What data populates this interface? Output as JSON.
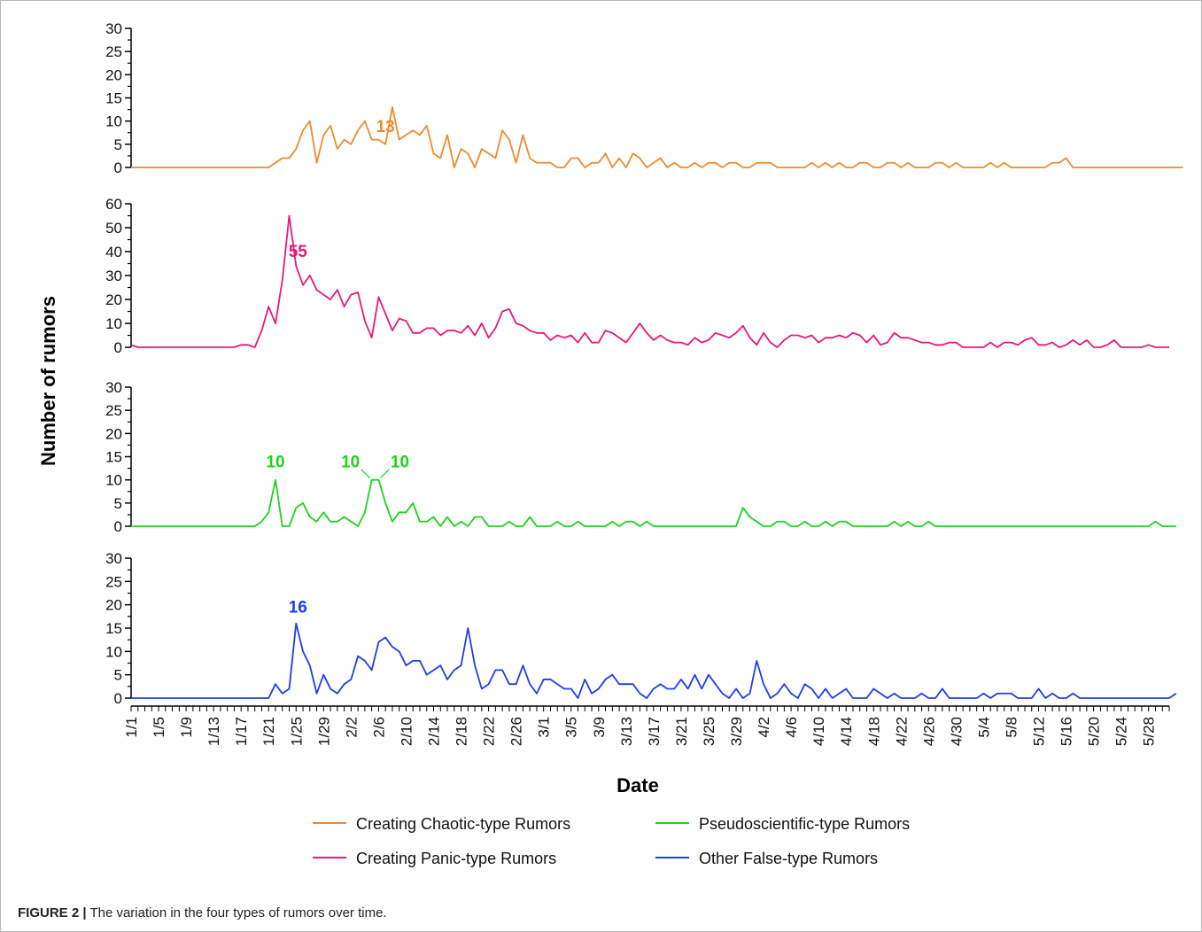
{
  "chart_data": {
    "type": "line",
    "xlabel": "Date",
    "ylabel": "Number of rumors",
    "x_tick_labels": [
      "1/1",
      "1/5",
      "1/9",
      "1/13",
      "1/17",
      "1/21",
      "1/25",
      "1/29",
      "2/2",
      "2/6",
      "2/10",
      "2/14",
      "2/18",
      "2/22",
      "2/26",
      "3/1",
      "3/5",
      "3/9",
      "3/13",
      "3/17",
      "3/21",
      "3/25",
      "3/29",
      "4/2",
      "4/6",
      "4/10",
      "4/14",
      "4/18",
      "4/22",
      "4/26",
      "4/30",
      "5/4",
      "5/8",
      "5/12",
      "5/16",
      "5/20",
      "5/24",
      "5/28"
    ],
    "x_tick_index": [
      0,
      4,
      8,
      12,
      16,
      20,
      24,
      28,
      32,
      36,
      40,
      44,
      48,
      52,
      56,
      60,
      64,
      68,
      72,
      76,
      80,
      84,
      88,
      92,
      96,
      100,
      104,
      108,
      112,
      116,
      120,
      124,
      128,
      132,
      136,
      140,
      144,
      148
    ],
    "num_days": 152,
    "panels": [
      {
        "name": "Creating Chaotic-type Rumors",
        "color": "#f08a2c",
        "ylim": [
          0,
          30
        ],
        "yticks": [
          0,
          5,
          10,
          15,
          20,
          25,
          30
        ],
        "annotations": [
          {
            "text": "13",
            "index": 37
          }
        ],
        "values": [
          0,
          0,
          0,
          0,
          0,
          0,
          0,
          0,
          0,
          0,
          0,
          0,
          0,
          0,
          0,
          0,
          0,
          0,
          0,
          0,
          0,
          1,
          2,
          2,
          4,
          8,
          10,
          1,
          7,
          9,
          4,
          6,
          5,
          8,
          10,
          6,
          6,
          5,
          13,
          6,
          7,
          8,
          7,
          9,
          3,
          2,
          7,
          0,
          4,
          3,
          0,
          4,
          3,
          2,
          8,
          6,
          1,
          7,
          2,
          1,
          1,
          1,
          0,
          0,
          2,
          2,
          0,
          1,
          1,
          3,
          0,
          2,
          0,
          3,
          2,
          0,
          1,
          2,
          0,
          1,
          0,
          0,
          1,
          0,
          1,
          1,
          0,
          1,
          1,
          0,
          0,
          1,
          1,
          1,
          0,
          0,
          0,
          0,
          0,
          1,
          0,
          1,
          0,
          1,
          0,
          0,
          1,
          1,
          0,
          0,
          1,
          1,
          0,
          1,
          0,
          0,
          0,
          1,
          1,
          0,
          1,
          0,
          0,
          0,
          0,
          1,
          0,
          1,
          0,
          0,
          0,
          0,
          0,
          0,
          1,
          1,
          2,
          0,
          0,
          0,
          0,
          0,
          0,
          0,
          0,
          0,
          0,
          0,
          0,
          0,
          0,
          0,
          0,
          0
        ]
      },
      {
        "name": "Creating Panic-type Rumors",
        "color": "#e6197d",
        "ylim": [
          0,
          60
        ],
        "yticks": [
          0,
          10,
          20,
          30,
          40,
          50,
          60
        ],
        "annotations": [
          {
            "text": "55",
            "index": 24
          }
        ],
        "values": [
          1,
          0,
          0,
          0,
          0,
          0,
          0,
          0,
          0,
          0,
          0,
          0,
          0,
          0,
          0,
          0,
          1,
          1,
          0,
          7,
          17,
          10,
          28,
          55,
          34,
          26,
          30,
          24,
          22,
          20,
          24,
          17,
          22,
          23,
          11,
          4,
          21,
          14,
          7,
          12,
          11,
          6,
          6,
          8,
          8,
          5,
          7,
          7,
          6,
          9,
          5,
          10,
          4,
          8,
          15,
          16,
          10,
          9,
          7,
          6,
          6,
          3,
          5,
          4,
          5,
          2,
          6,
          2,
          2,
          7,
          6,
          4,
          2,
          6,
          10,
          6,
          3,
          5,
          3,
          2,
          2,
          1,
          4,
          2,
          3,
          6,
          5,
          4,
          6,
          9,
          4,
          1,
          6,
          2,
          0,
          3,
          5,
          5,
          4,
          5,
          2,
          4,
          4,
          5,
          4,
          6,
          5,
          2,
          5,
          1,
          2,
          6,
          4,
          4,
          3,
          2,
          2,
          1,
          1,
          2,
          2,
          0,
          0,
          0,
          0,
          2,
          0,
          2,
          2,
          1,
          3,
          4,
          1,
          1,
          2,
          0,
          1,
          3,
          1,
          3,
          0,
          0,
          1,
          3,
          0,
          0,
          0,
          0,
          1,
          0,
          0,
          0
        ]
      },
      {
        "name": "Pseudoscientific-type Rumors",
        "color": "#1cd41c",
        "ylim": [
          0,
          30
        ],
        "yticks": [
          0,
          5,
          10,
          15,
          20,
          25,
          30
        ],
        "annotations": [
          {
            "text": "10",
            "index": 21
          },
          {
            "text": "10",
            "index": 35
          },
          {
            "text": "10",
            "index": 36
          }
        ],
        "values": [
          0,
          0,
          0,
          0,
          0,
          0,
          0,
          0,
          0,
          0,
          0,
          0,
          0,
          0,
          0,
          0,
          0,
          0,
          0,
          1,
          3,
          10,
          0,
          0,
          4,
          5,
          2,
          1,
          3,
          1,
          1,
          2,
          1,
          0,
          3,
          10,
          10,
          5,
          1,
          3,
          3,
          5,
          1,
          1,
          2,
          0,
          2,
          0,
          1,
          0,
          2,
          2,
          0,
          0,
          0,
          1,
          0,
          0,
          2,
          0,
          0,
          0,
          1,
          0,
          0,
          1,
          0,
          0,
          0,
          0,
          1,
          0,
          1,
          1,
          0,
          1,
          0,
          0,
          0,
          0,
          0,
          0,
          0,
          0,
          0,
          0,
          0,
          0,
          0,
          4,
          2,
          1,
          0,
          0,
          1,
          1,
          0,
          0,
          1,
          0,
          0,
          1,
          0,
          1,
          1,
          0,
          0,
          0,
          0,
          0,
          0,
          1,
          0,
          1,
          0,
          0,
          1,
          0,
          0,
          0,
          0,
          0,
          0,
          0,
          0,
          0,
          0,
          0,
          0,
          0,
          0,
          0,
          0,
          0,
          0,
          0,
          0,
          0,
          0,
          0,
          0,
          0,
          0,
          0,
          0,
          0,
          0,
          0,
          0,
          1,
          0,
          0,
          0
        ]
      },
      {
        "name": "Other False-type Rumors",
        "color": "#1f3de8",
        "ylim": [
          0,
          30
        ],
        "yticks": [
          0,
          5,
          10,
          15,
          20,
          25,
          30
        ],
        "annotations": [
          {
            "text": "16",
            "index": 24
          }
        ],
        "values": [
          0,
          0,
          0,
          0,
          0,
          0,
          0,
          0,
          0,
          0,
          0,
          0,
          0,
          0,
          0,
          0,
          0,
          0,
          0,
          0,
          0,
          3,
          1,
          2,
          16,
          10,
          7,
          1,
          5,
          2,
          1,
          3,
          4,
          9,
          8,
          6,
          12,
          13,
          11,
          10,
          7,
          8,
          8,
          5,
          6,
          7,
          4,
          6,
          7,
          15,
          7,
          2,
          3,
          6,
          6,
          3,
          3,
          7,
          3,
          1,
          4,
          4,
          3,
          2,
          2,
          0,
          4,
          1,
          2,
          4,
          5,
          3,
          3,
          3,
          1,
          0,
          2,
          3,
          2,
          2,
          4,
          2,
          5,
          2,
          5,
          3,
          1,
          0,
          2,
          0,
          1,
          8,
          3,
          0,
          1,
          3,
          1,
          0,
          3,
          2,
          0,
          2,
          0,
          1,
          2,
          0,
          0,
          0,
          2,
          1,
          0,
          1,
          0,
          0,
          0,
          1,
          0,
          0,
          2,
          0,
          0,
          0,
          0,
          0,
          1,
          0,
          1,
          1,
          1,
          0,
          0,
          0,
          2,
          0,
          1,
          0,
          0,
          1,
          0,
          0,
          0,
          0,
          0,
          0,
          0,
          0,
          0,
          0,
          0,
          0,
          0,
          0,
          1
        ]
      }
    ],
    "legend": {
      "placement": "bottom-center",
      "entries": [
        {
          "label": "Creating Chaotic-type Rumors",
          "color": "#f08a2c"
        },
        {
          "label": "Pseudoscientific-type Rumors",
          "color": "#1cd41c"
        },
        {
          "label": "Creating Panic-type Rumors",
          "color": "#e6197d"
        },
        {
          "label": "Other False-type Rumors",
          "color": "#1f3de8"
        }
      ]
    }
  },
  "caption": {
    "label": "FIGURE 2 |",
    "text": " The variation in the four types of rumors over time."
  }
}
